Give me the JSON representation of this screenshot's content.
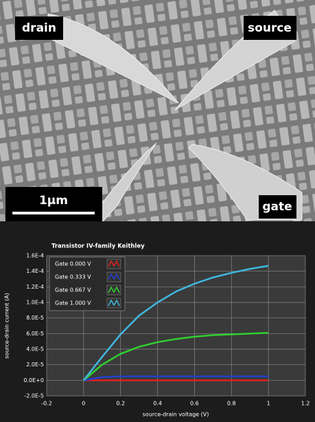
{
  "image": {
    "labels": {
      "drain": "drain",
      "source": "source",
      "gate": "gate",
      "scale": "1μm"
    }
  },
  "chart_data": {
    "type": "line",
    "title": "Transistor IV-family Keithley",
    "x_label": "source-drain voltage (V)",
    "y_label": "source-drain current (A)",
    "x": [
      0,
      0.1,
      0.2,
      0.3,
      0.4,
      0.5,
      0.6,
      0.7,
      0.8,
      0.9,
      1
    ],
    "series": [
      {
        "name": "Gate 0.000 V",
        "color": "#e02020",
        "values": [
          0,
          0,
          0,
          0,
          0,
          0,
          0,
          0,
          0,
          0,
          0
        ]
      },
      {
        "name": "Gate 0.333 V",
        "color": "#2040d0",
        "values": [
          0,
          4e-06,
          5e-06,
          5e-06,
          5e-06,
          5e-06,
          5e-06,
          5e-06,
          5e-06,
          5e-06,
          5e-06
        ]
      },
      {
        "name": "Gate 0.667 V",
        "color": "#30d030",
        "values": [
          0,
          2e-05,
          3.4e-05,
          4.3e-05,
          4.9e-05,
          5.3e-05,
          5.6e-05,
          5.8e-05,
          5.9e-05,
          6e-05,
          6.1e-05
        ]
      },
      {
        "name": "Gate 1.000 V",
        "color": "#40b8e0",
        "values": [
          0,
          3e-05,
          5.9e-05,
          8.3e-05,
          0.0001,
          0.000114,
          0.000124,
          0.000132,
          0.000138,
          0.000143,
          0.000147
        ]
      }
    ],
    "xlim": [
      -0.2,
      1.2
    ],
    "xticks": [
      -0.2,
      0,
      0.2,
      0.4,
      0.6,
      0.8,
      1,
      1.2
    ],
    "ylim": [
      -2e-05,
      0.00016
    ],
    "yticks": [
      {
        "value": -2e-05,
        "label": "-2.0E-5"
      },
      {
        "value": 0,
        "label": "0.0E+0"
      },
      {
        "value": 2e-05,
        "label": "2.0E-5"
      },
      {
        "value": 4e-05,
        "label": "4.0E-5"
      },
      {
        "value": 6e-05,
        "label": "6.0E-5"
      },
      {
        "value": 8e-05,
        "label": "8.0E-5"
      },
      {
        "value": 0.0001,
        "label": "1.0E-4"
      },
      {
        "value": 0.00012,
        "label": "1.2E-4"
      },
      {
        "value": 0.00014,
        "label": "1.4E-4"
      },
      {
        "value": 0.00016,
        "label": "1.6E-4"
      }
    ],
    "grid": true
  }
}
